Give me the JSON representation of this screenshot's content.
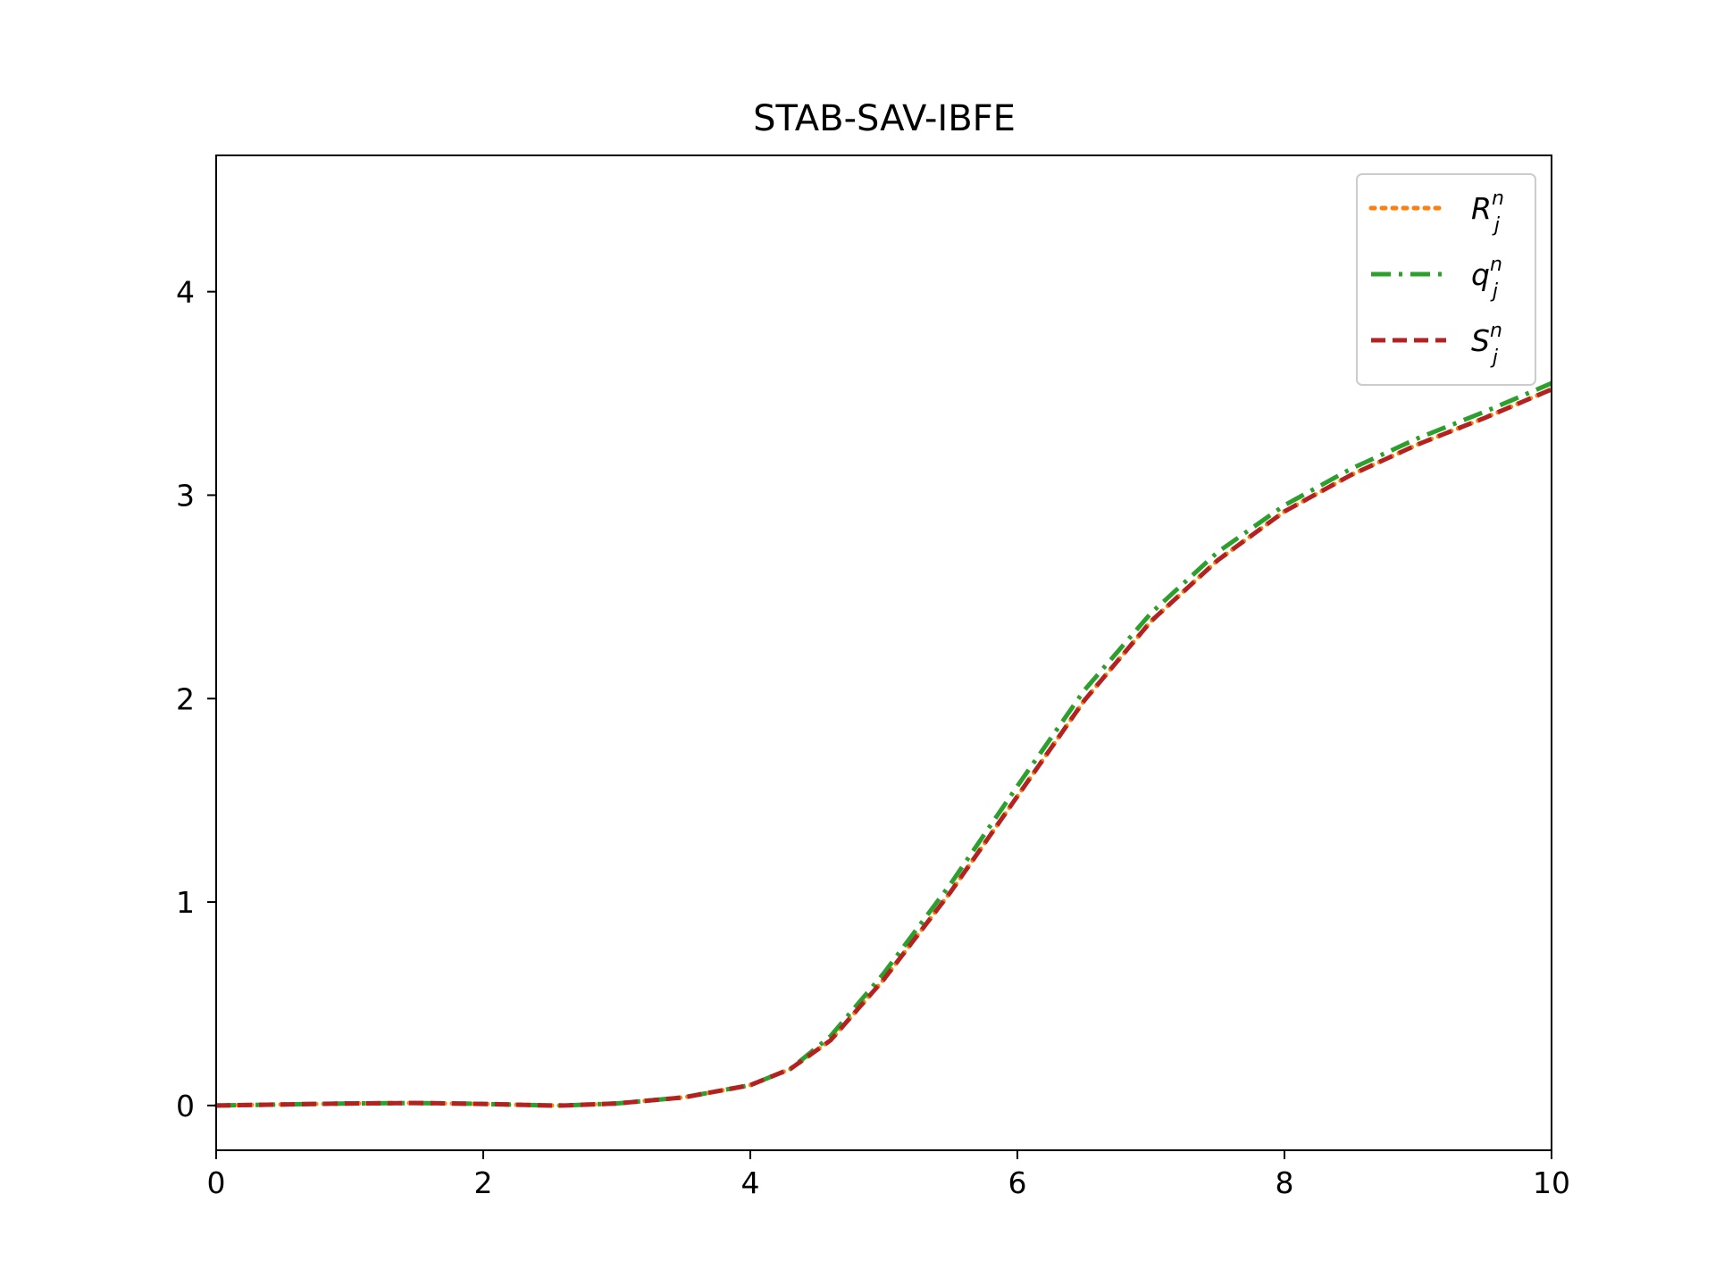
{
  "chart_data": {
    "type": "line",
    "title": "STAB-SAV-IBFE",
    "xlabel": "",
    "ylabel": "",
    "xlim": [
      0,
      10
    ],
    "ylim": [
      -0.22,
      4.67
    ],
    "xticks": [
      0,
      2,
      4,
      6,
      8,
      10
    ],
    "yticks": [
      0,
      1,
      2,
      3,
      4
    ],
    "grid": false,
    "legend_position": "top-right",
    "series": [
      {
        "name": "R_j^n",
        "label_base": "R",
        "label_sub": "j",
        "label_sup": "n",
        "color": "#ff7f0e",
        "style": "dotted",
        "x": [
          0,
          0.5,
          1.0,
          1.5,
          2.0,
          2.5,
          2.6,
          3.0,
          3.5,
          4.0,
          4.3,
          4.6,
          5.0,
          5.5,
          6.0,
          6.5,
          7.0,
          7.5,
          8.0,
          8.5,
          9.0,
          9.5,
          10.0
        ],
        "y": [
          0.0,
          0.005,
          0.01,
          0.012,
          0.008,
          0.0,
          0.0,
          0.01,
          0.04,
          0.1,
          0.18,
          0.32,
          0.62,
          1.05,
          1.52,
          1.99,
          2.38,
          2.68,
          2.92,
          3.1,
          3.25,
          3.38,
          3.52
        ]
      },
      {
        "name": "q_j^n",
        "label_base": "q",
        "label_sub": "j",
        "label_sup": "n",
        "color": "#2ca02c",
        "style": "dashdot",
        "x": [
          0,
          0.5,
          1.0,
          1.5,
          2.0,
          2.5,
          2.6,
          3.0,
          3.5,
          4.0,
          4.3,
          4.6,
          5.0,
          5.5,
          6.0,
          6.5,
          7.0,
          7.5,
          8.0,
          8.5,
          9.0,
          9.5,
          10.0
        ],
        "y": [
          0.0,
          0.005,
          0.01,
          0.012,
          0.008,
          0.0,
          0.0,
          0.01,
          0.04,
          0.1,
          0.18,
          0.34,
          0.65,
          1.09,
          1.57,
          2.04,
          2.42,
          2.72,
          2.95,
          3.13,
          3.28,
          3.41,
          3.55
        ]
      },
      {
        "name": "S_j^n",
        "label_base": "S",
        "label_sub": "j",
        "label_sup": "n",
        "color": "#b22222",
        "style": "dashed",
        "x": [
          0,
          0.5,
          1.0,
          1.5,
          2.0,
          2.5,
          2.6,
          3.0,
          3.5,
          4.0,
          4.3,
          4.6,
          5.0,
          5.5,
          6.0,
          6.5,
          7.0,
          7.5,
          8.0,
          8.5,
          9.0,
          9.5,
          10.0
        ],
        "y": [
          0.0,
          0.005,
          0.01,
          0.012,
          0.008,
          0.0,
          0.0,
          0.01,
          0.04,
          0.1,
          0.18,
          0.32,
          0.62,
          1.05,
          1.52,
          1.99,
          2.38,
          2.68,
          2.92,
          3.1,
          3.25,
          3.38,
          3.52
        ]
      }
    ]
  }
}
